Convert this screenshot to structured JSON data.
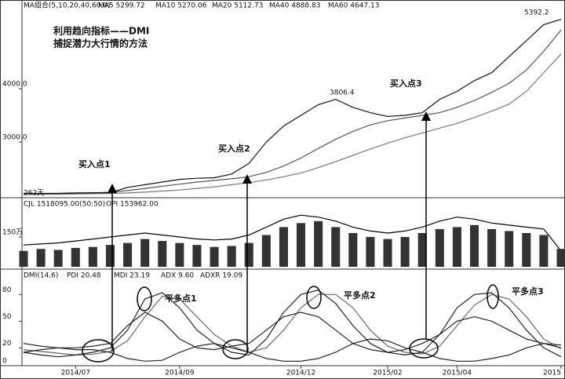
{
  "chart_data": [
    {
      "type": "line",
      "header": [
        "MA组合(5,10,20,40,60,0)",
        "MA5 5299.72",
        "MA10 5270.06",
        "MA20 5112.73",
        "MA40 4888.83",
        "MA60 4647.13"
      ],
      "title": "利用趋向指标——DMI",
      "subtitle": "捕捉潜力大行情的方法",
      "annotations": [
        "买入点1",
        "买入点2",
        "买入点3",
        "262天"
      ],
      "peak_labels": [
        3806.4,
        5392.2
      ],
      "ylim": [
        1985,
        5515
      ],
      "yticks": [
        {
          "value": 3000,
          "label": "3000.0"
        },
        {
          "value": 4000,
          "label": "4000.0"
        }
      ],
      "series": [
        {
          "color": "#111111",
          "values": [
            2040,
            2035,
            2040,
            2045,
            2050,
            2050,
            2150,
            2200,
            2250,
            2300,
            2320,
            2330,
            2400,
            2600,
            3000,
            3300,
            3500,
            3700,
            3800,
            3650,
            3550,
            3480,
            3500,
            3550,
            3800,
            3950,
            4150,
            4300,
            4600,
            4900,
            5200,
            5300
          ]
        },
        {
          "color": "#555555",
          "values": [
            2030,
            2030,
            2035,
            2040,
            2045,
            2060,
            2090,
            2130,
            2170,
            2210,
            2250,
            2280,
            2310,
            2350,
            2430,
            2550,
            2700,
            2880,
            3050,
            3200,
            3320,
            3400,
            3450,
            3500,
            3550,
            3650,
            3780,
            3930,
            4100,
            4350,
            4700,
            5100
          ]
        },
        {
          "color": "#777777",
          "values": [
            2020,
            2020,
            2020,
            2025,
            2030,
            2035,
            2045,
            2060,
            2080,
            2100,
            2130,
            2160,
            2200,
            2240,
            2290,
            2350,
            2420,
            2520,
            2630,
            2750,
            2870,
            2980,
            3080,
            3170,
            3260,
            3350,
            3460,
            3580,
            3710,
            3950,
            4300,
            4650
          ]
        }
      ]
    },
    {
      "type": "bar",
      "header": [
        "CJL  1518095.00(50:50)",
        "OPI  153962.00"
      ],
      "ylim": [
        0,
        324
      ],
      "yticks": [
        {
          "value": 150,
          "label": "150万"
        }
      ],
      "color": "#333333",
      "values": [
        80,
        90,
        85,
        95,
        100,
        110,
        120,
        140,
        130,
        120,
        110,
        100,
        105,
        120,
        160,
        200,
        220,
        230,
        200,
        170,
        150,
        140,
        150,
        170,
        190,
        200,
        210,
        190,
        180,
        170,
        160,
        90
      ],
      "series": [
        {
          "color": "#000000",
          "values": [
            110,
            115,
            120,
            130,
            140,
            150,
            160,
            170,
            160,
            150,
            140,
            135,
            140,
            160,
            200,
            240,
            260,
            250,
            230,
            200,
            180,
            170,
            180,
            200,
            230,
            250,
            240,
            220,
            210,
            200,
            190,
            80
          ]
        }
      ]
    },
    {
      "type": "line",
      "header": [
        "DMI(14,6)",
        "PDI  20.48",
        "MDI  23.19",
        "ADX  9.60",
        "ADXR  19.09"
      ],
      "annotations": [
        "平多点1",
        "平多点2",
        "平多点3"
      ],
      "ylim": [
        0,
        105
      ],
      "yticks": [
        0,
        20,
        50,
        80
      ],
      "categories": [
        null,
        null,
        null,
        "2014/07",
        null,
        null,
        null,
        null,
        null,
        "2014/09",
        null,
        null,
        null,
        null,
        null,
        null,
        "2014/12",
        null,
        null,
        null,
        null,
        "2015/02",
        null,
        null,
        null,
        "2015/04",
        null,
        null,
        null,
        null,
        null,
        "2015"
      ],
      "series": [
        {
          "color": "#222222",
          "values": [
            15,
            18,
            20,
            20,
            22,
            25,
            45,
            60,
            50,
            30,
            20,
            18,
            22,
            25,
            40,
            55,
            60,
            55,
            40,
            25,
            18,
            15,
            18,
            25,
            35,
            50,
            55,
            50,
            40,
            30,
            25,
            20
          ]
        },
        {
          "color": "#222222",
          "values": [
            25,
            22,
            20,
            18,
            18,
            15,
            8,
            5,
            6,
            15,
            22,
            25,
            20,
            15,
            8,
            5,
            5,
            8,
            15,
            25,
            30,
            28,
            20,
            15,
            8,
            5,
            5,
            8,
            12,
            20,
            25,
            23
          ]
        },
        {
          "color": "#222222",
          "values": [
            15,
            12,
            10,
            12,
            15,
            20,
            40,
            75,
            82,
            65,
            40,
            25,
            15,
            12,
            30,
            60,
            80,
            85,
            70,
            45,
            25,
            15,
            12,
            15,
            35,
            65,
            80,
            82,
            65,
            40,
            20,
            10
          ]
        },
        {
          "color": "#666666",
          "values": [
            18,
            16,
            14,
            12,
            13,
            16,
            28,
            55,
            78,
            75,
            55,
            35,
            22,
            15,
            20,
            40,
            65,
            80,
            80,
            65,
            40,
            22,
            15,
            13,
            22,
            45,
            68,
            80,
            75,
            55,
            30,
            19
          ]
        }
      ]
    }
  ]
}
